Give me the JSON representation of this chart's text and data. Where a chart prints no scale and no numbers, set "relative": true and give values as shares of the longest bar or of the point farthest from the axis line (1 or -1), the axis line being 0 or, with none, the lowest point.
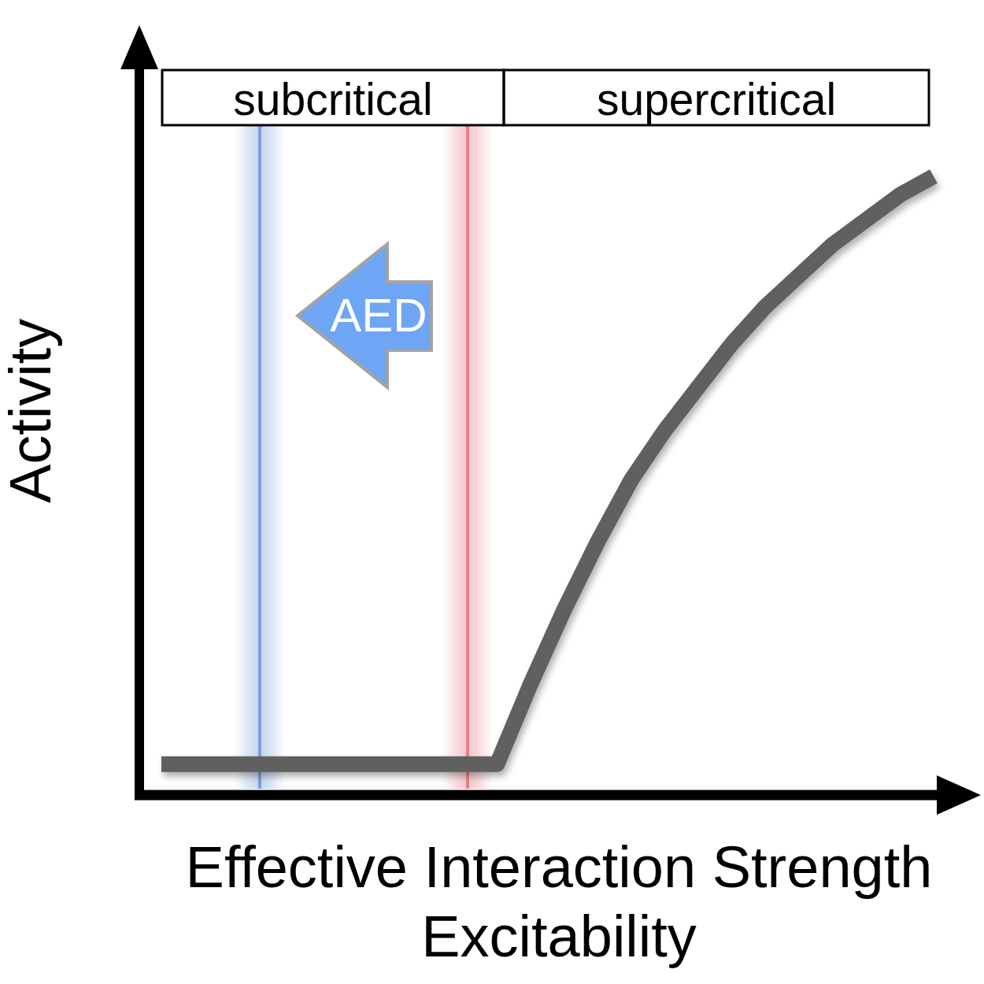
{
  "chart_data": {
    "type": "line",
    "relative": true,
    "categories": [
      null,
      null,
      null,
      null,
      null,
      null,
      null,
      null,
      null,
      null,
      null,
      null,
      null,
      null,
      null,
      null,
      null,
      null,
      null,
      null,
      null,
      null,
      null,
      null
    ],
    "series": [
      {
        "color": "#606060",
        "values": [
          0.05,
          0.05,
          0.05,
          0.05,
          0.05,
          0.05,
          0.05,
          0.05,
          0.05,
          0.05,
          0.05,
          0.18,
          0.3,
          0.41,
          0.51,
          0.59,
          0.66,
          0.73,
          0.79,
          0.84,
          0.89,
          0.93,
          0.97,
          1
        ]
      }
    ],
    "xlabel": "Effective Interaction Strength\nExcitability",
    "ylabel": "Activity",
    "annotations": [
      "subcritical",
      "supercritical",
      "AED"
    ]
  }
}
